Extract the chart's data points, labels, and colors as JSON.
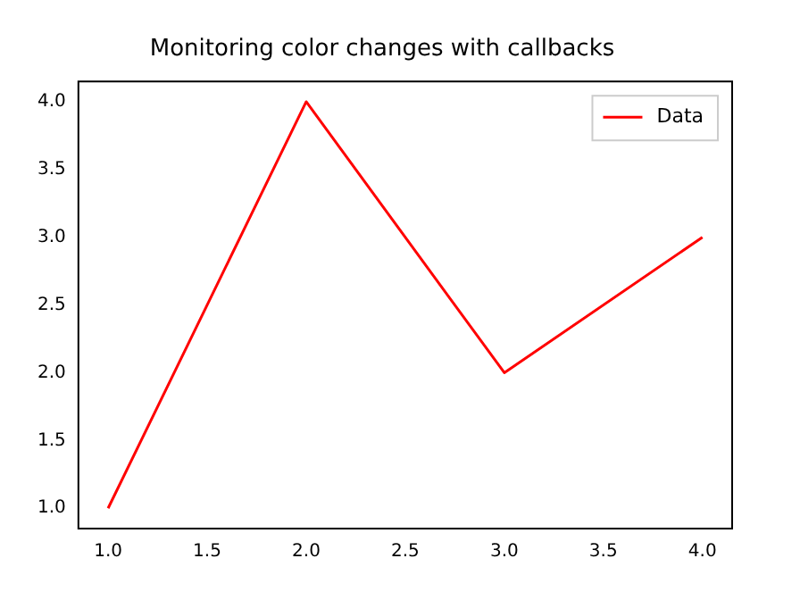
{
  "chart_data": {
    "type": "line",
    "title": "Monitoring color changes with callbacks",
    "x": [
      1,
      2,
      3,
      4
    ],
    "series": [
      {
        "name": "Data",
        "color": "#ff0000",
        "values": [
          1,
          4,
          2,
          3
        ]
      }
    ],
    "xlim": [
      0.85,
      4.15
    ],
    "ylim": [
      0.85,
      4.15
    ],
    "xticks": [
      {
        "value": 1,
        "label": "1.0"
      },
      {
        "value": 1.5,
        "label": "1.5"
      },
      {
        "value": 2,
        "label": "2.0"
      },
      {
        "value": 2.5,
        "label": "2.5"
      },
      {
        "value": 3,
        "label": "3.0"
      },
      {
        "value": 3.5,
        "label": "3.5"
      },
      {
        "value": 4,
        "label": "4.0"
      }
    ],
    "yticks": [
      {
        "value": 1,
        "label": "1.0"
      },
      {
        "value": 1.5,
        "label": "1.5"
      },
      {
        "value": 2,
        "label": "2.0"
      },
      {
        "value": 2.5,
        "label": "2.5"
      },
      {
        "value": 3,
        "label": "3.0"
      },
      {
        "value": 3.5,
        "label": "3.5"
      },
      {
        "value": 4,
        "label": "4.0"
      }
    ],
    "grid": false,
    "legend": "top right",
    "marker": "none",
    "line_style": "solid"
  }
}
